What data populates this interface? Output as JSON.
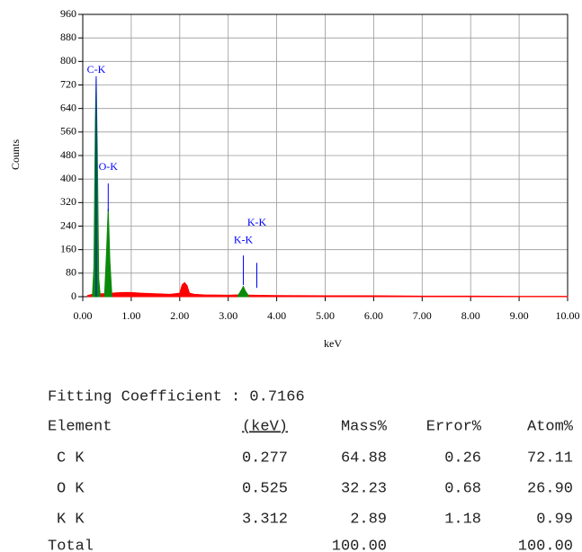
{
  "chart_data": {
    "type": "area",
    "xlabel": "keV",
    "ylabel": "Counts",
    "xlim": [
      0,
      10
    ],
    "ylim": [
      0,
      960
    ],
    "xticks": [
      {
        "value": 0,
        "label": "0.00"
      },
      {
        "value": 1,
        "label": "1.00"
      },
      {
        "value": 2,
        "label": "2.00"
      },
      {
        "value": 3,
        "label": "3.00"
      },
      {
        "value": 4,
        "label": "4.00"
      },
      {
        "value": 5,
        "label": "5.00"
      },
      {
        "value": 6,
        "label": "6.00"
      },
      {
        "value": 7,
        "label": "7.00"
      },
      {
        "value": 8,
        "label": "8.00"
      },
      {
        "value": 9,
        "label": "9.00"
      },
      {
        "value": 10,
        "label": "10.00"
      }
    ],
    "yticks": [
      0,
      80,
      160,
      240,
      320,
      400,
      480,
      560,
      640,
      720,
      800,
      880,
      960
    ],
    "grid": true,
    "series": [
      {
        "color": "#ff0000",
        "x": [
          0.1,
          0.2,
          0.4,
          0.6,
          0.8,
          1.0,
          1.2,
          1.5,
          1.8,
          2.0,
          2.05,
          2.1,
          2.15,
          2.2,
          2.3,
          2.5,
          3.0,
          3.2,
          3.5,
          4.0,
          5.0,
          6.0,
          7.0,
          8.0,
          9.0,
          10.0
        ],
        "values": [
          4,
          8,
          10,
          12,
          14,
          14,
          12,
          10,
          8,
          12,
          40,
          48,
          38,
          12,
          8,
          6,
          5,
          6,
          5,
          4,
          3,
          3,
          2,
          2,
          1,
          1
        ]
      },
      {
        "color": "#0a8a0a",
        "x": [
          0.2,
          0.23,
          0.26,
          0.277,
          0.3,
          0.33,
          0.36,
          null,
          0.45,
          0.49,
          0.525,
          0.56,
          0.6,
          null,
          3.2,
          3.28,
          3.312,
          3.35,
          3.42
        ],
        "values": [
          5,
          100,
          600,
          740,
          500,
          60,
          5,
          null,
          5,
          150,
          300,
          120,
          5,
          null,
          3,
          25,
          35,
          20,
          3
        ]
      }
    ],
    "annotations": [
      {
        "label": "C-K",
        "x": 0.277,
        "line": [
          0,
          750
        ],
        "label_y": 770
      },
      {
        "label": "O-K",
        "x": 0.525,
        "line": [
          290,
          385
        ],
        "label_y": 440
      },
      {
        "label": "K-K",
        "x": 3.312,
        "line": [
          40,
          140
        ],
        "label_y": 190
      },
      {
        "label": "K-K",
        "x": 3.59,
        "line": [
          30,
          115
        ],
        "label_y": 250
      }
    ]
  },
  "table": {
    "fitting": "Fitting Coefficient : 0.7166",
    "header": [
      "Element",
      "(keV)",
      "Mass%",
      "Error%",
      "Atom%"
    ],
    "rows": [
      [
        "C K",
        "0.277",
        "64.88",
        "0.26",
        "72.11"
      ],
      [
        "O K",
        "0.525",
        "32.23",
        "0.68",
        "26.90"
      ],
      [
        "K K",
        "3.312",
        "2.89",
        "1.18",
        "0.99"
      ]
    ],
    "total": {
      "label": "Total",
      "mass": "100.00",
      "atom": "100.00"
    }
  }
}
